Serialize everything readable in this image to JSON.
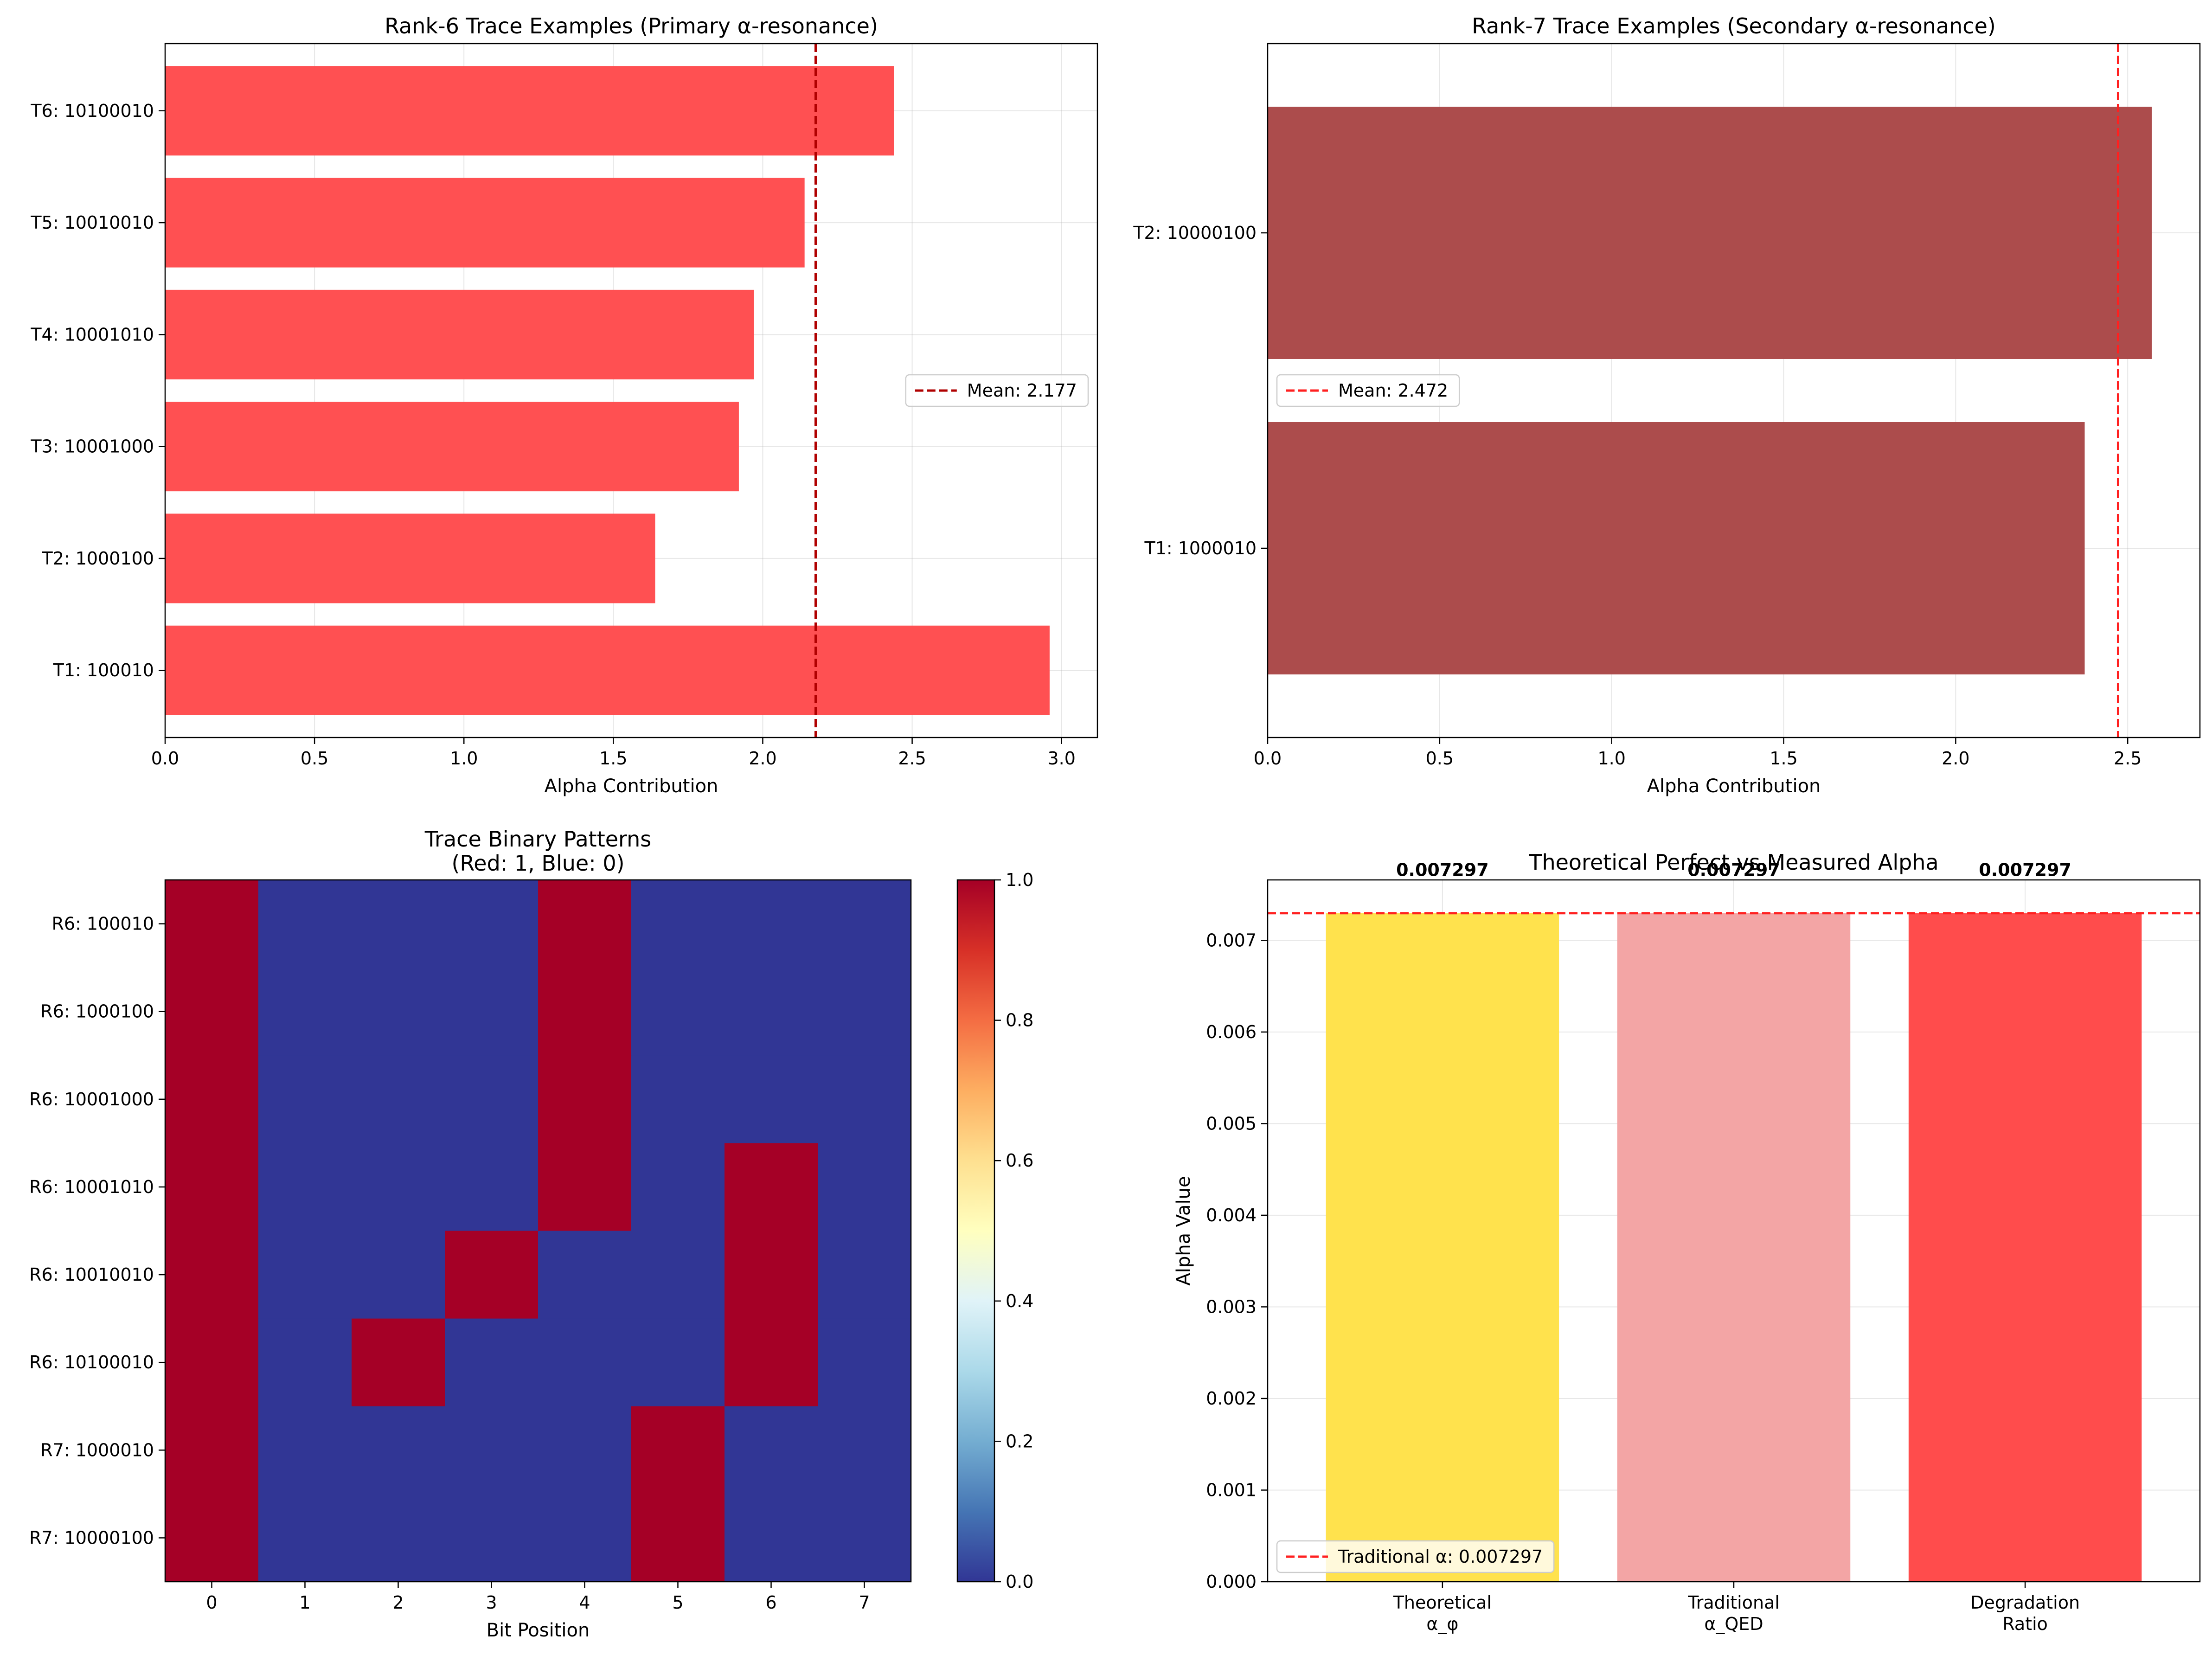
{
  "chart_data": [
    {
      "id": "p1",
      "type": "bar",
      "orientation": "horizontal",
      "title": "Rank-6 Trace Examples (Primary α-resonance)",
      "xlabel": "Alpha Contribution",
      "ylabel": "",
      "xlim": [
        0,
        3.12
      ],
      "xticks": [
        0.0,
        0.5,
        1.0,
        1.5,
        2.0,
        2.5,
        3.0
      ],
      "xtick_labels": [
        "0.0",
        "0.5",
        "1.0",
        "1.5",
        "2.0",
        "2.5",
        "3.0"
      ],
      "categories": [
        "T1: 100010",
        "T2: 1000100",
        "T3: 10001000",
        "T4: 10001010",
        "T5: 10010010",
        "T6: 10100010"
      ],
      "values": [
        2.96,
        1.64,
        1.92,
        1.97,
        2.14,
        2.44
      ],
      "bar_color": "#ff5052",
      "mean_line": {
        "value": 2.177,
        "color": "#b00000",
        "label": "Mean: 2.177"
      },
      "legend_position": "center-right",
      "grid": true
    },
    {
      "id": "p2",
      "type": "bar",
      "orientation": "horizontal",
      "title": "Rank-7 Trace Examples (Secondary α-resonance)",
      "xlabel": "Alpha Contribution",
      "ylabel": "",
      "xlim": [
        0,
        2.71
      ],
      "xticks": [
        0.0,
        0.5,
        1.0,
        1.5,
        2.0,
        2.5
      ],
      "xtick_labels": [
        "0.0",
        "0.5",
        "1.0",
        "1.5",
        "2.0",
        "2.5"
      ],
      "categories": [
        "T1: 1000010",
        "T2: 10000100"
      ],
      "values": [
        2.375,
        2.57
      ],
      "bar_color": "#ac4c4c",
      "mean_line": {
        "value": 2.472,
        "color": "#ff2020",
        "label": "Mean: 2.472"
      },
      "legend_position": "center-left",
      "grid": true
    },
    {
      "id": "p3",
      "type": "heatmap",
      "title": "Trace Binary Patterns",
      "subtitle": "(Red: 1, Blue: 0)",
      "xlabel": "Bit Position",
      "ylabel": "",
      "columns": [
        "0",
        "1",
        "2",
        "3",
        "4",
        "5",
        "6",
        "7"
      ],
      "rows": [
        "R6: 100010",
        "R6: 1000100",
        "R6: 10001000",
        "R6: 10001010",
        "R6: 10010010",
        "R6: 10100010",
        "R7: 1000010",
        "R7: 10000100"
      ],
      "matrix": [
        [
          1,
          0,
          0,
          0,
          1,
          0,
          0,
          0
        ],
        [
          1,
          0,
          0,
          0,
          1,
          0,
          0,
          0
        ],
        [
          1,
          0,
          0,
          0,
          1,
          0,
          0,
          0
        ],
        [
          1,
          0,
          0,
          0,
          1,
          0,
          1,
          0
        ],
        [
          1,
          0,
          0,
          1,
          0,
          0,
          1,
          0
        ],
        [
          1,
          0,
          1,
          0,
          0,
          0,
          1,
          0
        ],
        [
          1,
          0,
          0,
          0,
          0,
          1,
          0,
          0
        ],
        [
          1,
          0,
          0,
          0,
          0,
          1,
          0,
          0
        ]
      ],
      "color_one": "#a50026",
      "color_zero": "#313695",
      "colormap": "RdYlBu_r",
      "colorbar_range": [
        0,
        1
      ],
      "colorbar_ticks": [
        "0.0",
        "0.2",
        "0.4",
        "0.6",
        "0.8",
        "1.0"
      ]
    },
    {
      "id": "p4",
      "type": "bar",
      "title": "Theoretical Perfect vs Measured Alpha",
      "xlabel": "",
      "ylabel": "Alpha Value",
      "ylim": [
        0,
        0.00766
      ],
      "yticks": [
        0,
        0.001,
        0.002,
        0.003,
        0.004,
        0.005,
        0.006,
        0.007
      ],
      "ytick_labels": [
        "0.000",
        "0.001",
        "0.002",
        "0.003",
        "0.004",
        "0.005",
        "0.006",
        "0.007"
      ],
      "categories": [
        [
          "Theoretical",
          "α_φ"
        ],
        [
          "Traditional",
          "α_QED"
        ],
        [
          "Degradation",
          "Ratio"
        ]
      ],
      "values": [
        0.007297,
        0.007297,
        0.007297
      ],
      "value_labels": [
        "0.007297",
        "0.007297",
        "0.007297"
      ],
      "bar_colors": [
        "#ffe24d",
        "#f3a5a5",
        "#ff4c4c"
      ],
      "ref_line": {
        "value": 0.007297,
        "color": "#ff2020",
        "label": "Traditional α: 0.007297"
      },
      "legend_position": "lower-left",
      "grid": true
    }
  ]
}
